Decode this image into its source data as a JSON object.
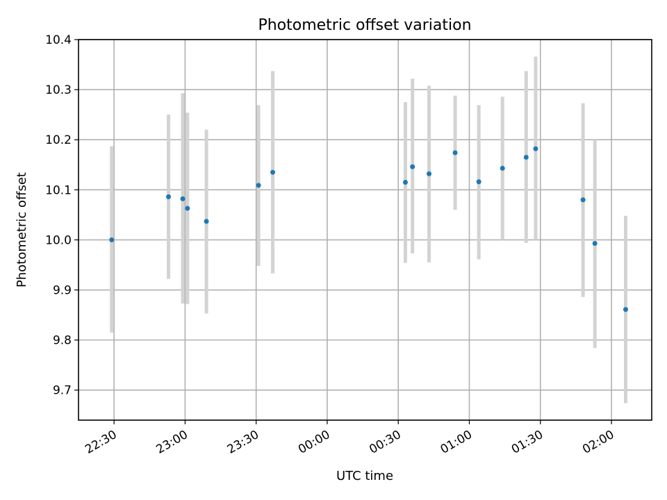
{
  "chart_data": {
    "type": "scatter",
    "title": "Photometric offset variation",
    "xlabel": "UTC time",
    "ylabel": "Photometric offset",
    "x_unit": "UTC time (HH:MM)",
    "xlim": [
      "22:15",
      "02:17"
    ],
    "ylim": [
      9.64,
      10.4
    ],
    "grid": true,
    "x_ticks": [
      "22:30",
      "23:00",
      "23:30",
      "00:00",
      "00:30",
      "01:00",
      "01:30",
      "02:00"
    ],
    "y_ticks": [
      "9.7",
      "9.8",
      "9.9",
      "10.0",
      "10.1",
      "10.2",
      "10.3",
      "10.4"
    ],
    "colors": {
      "points": "#1f77b4",
      "error_bars": "#d3d3d3",
      "grid": "#b0b0b0"
    },
    "series": [
      {
        "points": [
          {
            "x": "22:29",
            "y": 10.0,
            "ylow": 9.815,
            "yhigh": 10.187
          },
          {
            "x": "22:53",
            "y": 10.086,
            "ylow": 9.922,
            "yhigh": 10.25
          },
          {
            "x": "22:59",
            "y": 10.082,
            "ylow": 9.873,
            "yhigh": 10.293
          },
          {
            "x": "23:01",
            "y": 10.063,
            "ylow": 9.872,
            "yhigh": 10.254
          },
          {
            "x": "23:09",
            "y": 10.037,
            "ylow": 9.853,
            "yhigh": 10.22
          },
          {
            "x": "23:31",
            "y": 10.109,
            "ylow": 9.948,
            "yhigh": 10.269
          },
          {
            "x": "23:37",
            "y": 10.135,
            "ylow": 9.933,
            "yhigh": 10.337
          },
          {
            "x": "00:33",
            "y": 10.115,
            "ylow": 9.954,
            "yhigh": 10.275
          },
          {
            "x": "00:36",
            "y": 10.146,
            "ylow": 9.973,
            "yhigh": 10.322
          },
          {
            "x": "00:43",
            "y": 10.132,
            "ylow": 9.955,
            "yhigh": 10.308
          },
          {
            "x": "00:54",
            "y": 10.174,
            "ylow": 10.06,
            "yhigh": 10.288
          },
          {
            "x": "01:04",
            "y": 10.116,
            "ylow": 9.961,
            "yhigh": 10.269
          },
          {
            "x": "01:14",
            "y": 10.143,
            "ylow": 10.0,
            "yhigh": 10.286
          },
          {
            "x": "01:24",
            "y": 10.165,
            "ylow": 9.994,
            "yhigh": 10.337
          },
          {
            "x": "01:28",
            "y": 10.182,
            "ylow": 10.0,
            "yhigh": 10.366
          },
          {
            "x": "01:48",
            "y": 10.08,
            "ylow": 9.886,
            "yhigh": 10.273
          },
          {
            "x": "01:53",
            "y": 9.993,
            "ylow": 9.784,
            "yhigh": 10.2
          },
          {
            "x": "02:06",
            "y": 9.861,
            "ylow": 9.674,
            "yhigh": 10.048
          }
        ]
      }
    ]
  }
}
